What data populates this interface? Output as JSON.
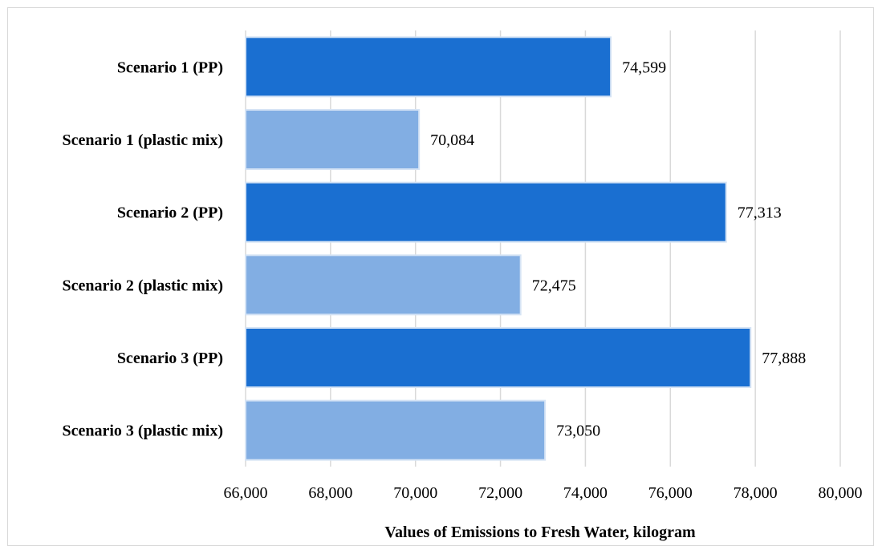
{
  "chart_data": {
    "type": "bar",
    "orientation": "horizontal",
    "categories": [
      "Scenario 1 (PP)",
      "Scenario 1 (plastic mix)",
      "Scenario 2 (PP)",
      "Scenario 2 (plastic mix)",
      "Scenario 3 (PP)",
      "Scenario 3 (plastic mix)"
    ],
    "values": [
      74599,
      70084,
      77313,
      72475,
      77888,
      73050
    ],
    "value_labels": [
      "74,599",
      "70,084",
      "77,313",
      "72,475",
      "77,888",
      "73,050"
    ],
    "bar_colors": [
      "#1a6fd1",
      "#82aee3",
      "#1a6fd1",
      "#82aee3",
      "#1a6fd1",
      "#82aee3"
    ],
    "bar_border_color": "#d6e4f5",
    "title": "",
    "xlabel": "Values of Emissions to Fresh Water, kilogram",
    "ylabel": "",
    "xlim": [
      66000,
      80000
    ],
    "x_ticks": [
      66000,
      68000,
      70000,
      72000,
      74000,
      76000,
      78000,
      80000
    ],
    "x_tick_labels": [
      "66,000",
      "68,000",
      "70,000",
      "72,000",
      "74,000",
      "76,000",
      "78,000",
      "80,000"
    ],
    "grid": "vertical",
    "grid_color": "#d9d9d9",
    "legend": "none"
  }
}
